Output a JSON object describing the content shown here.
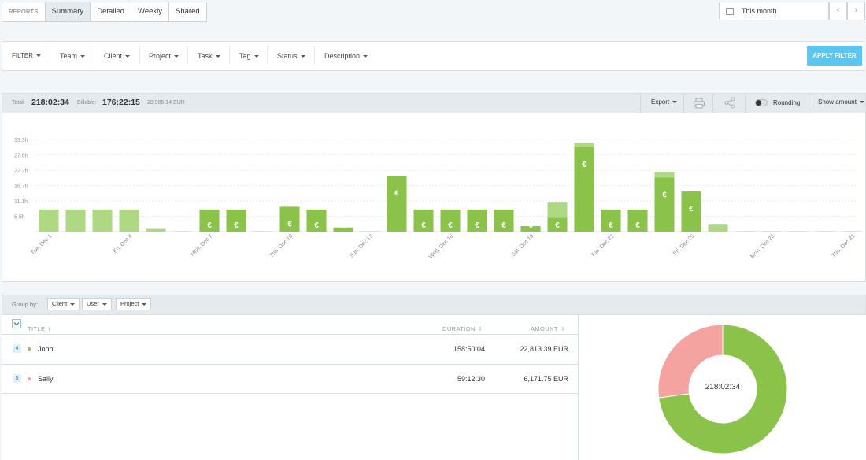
{
  "tabs": [
    "REPORTS",
    "Summary",
    "Detailed",
    "Weekly",
    "Shared"
  ],
  "date_range": {
    "label": "This month",
    "prev": "‹",
    "next": "›"
  },
  "filters": {
    "label": "FILTER",
    "items": [
      "Team",
      "Client",
      "Project",
      "Task",
      "Tag",
      "Status",
      "Description"
    ],
    "apply_label": "APPLY FILTER"
  },
  "totals": {
    "total_label": "Total:",
    "total_value": "218:02:34",
    "billable_label": "Billable:",
    "billable_value": "176:22:15",
    "amount": "28,985.14 EUR"
  },
  "toolbar": {
    "export_label": "Export",
    "rounding_label": "Rounding",
    "show_amount_label": "Show amount"
  },
  "colors": {
    "billable": "#8bc34a",
    "nonbillable": "#aed882",
    "john": "#8bc34a",
    "sally": "#f5a3a0"
  },
  "chart_data": {
    "type": "bar",
    "y_ticks": [
      "5.5h",
      "11.1h",
      "16.7h",
      "22.2h",
      "27.8h",
      "33.3h"
    ],
    "ylim": [
      0,
      33.3
    ],
    "x_tick_labels": [
      "Tue, Dec 1",
      "Fri, Dec 4",
      "Mon, Dec 7",
      "Thu, Dec 10",
      "Sun, Dec 13",
      "Wed, Dec 16",
      "Sat, Dec 19",
      "Tue, Dec 22",
      "Fri, Dec 25",
      "Mon, Dec 28",
      "Thu, Dec 31"
    ],
    "euro_symbol": "€",
    "series": [
      {
        "values": [
          0,
          0,
          0,
          0,
          0,
          0,
          8,
          8,
          0,
          9,
          8,
          1.5,
          0,
          20,
          8,
          8,
          8,
          8,
          2,
          5,
          30.5,
          8,
          8,
          19.5,
          14.5,
          0,
          0,
          0,
          0,
          0,
          0
        ]
      },
      {
        "values": [
          8,
          8,
          8,
          8,
          1,
          0,
          0,
          0,
          0,
          0,
          0,
          0,
          0,
          0,
          0,
          0,
          0,
          0,
          0,
          5.5,
          1.5,
          0,
          0,
          2,
          0,
          2.5,
          0,
          0,
          0,
          0,
          0
        ]
      }
    ]
  },
  "grouping": {
    "label": "Group by:",
    "options": [
      "Client",
      "User",
      "Project"
    ]
  },
  "table": {
    "columns": {
      "title": "TITLE",
      "duration": "DURATION",
      "amount": "AMOUNT"
    },
    "rows": [
      {
        "count": "4",
        "name": "John",
        "duration": "158:50:04",
        "amount": "22,813.39 EUR"
      },
      {
        "count": "5",
        "name": "Sally",
        "duration": "59:12:30",
        "amount": "6,171.75 EUR"
      }
    ]
  },
  "donut": {
    "center_label": "218:02:34",
    "slices": [
      {
        "value": 158.83
      },
      {
        "value": 59.21
      }
    ]
  }
}
